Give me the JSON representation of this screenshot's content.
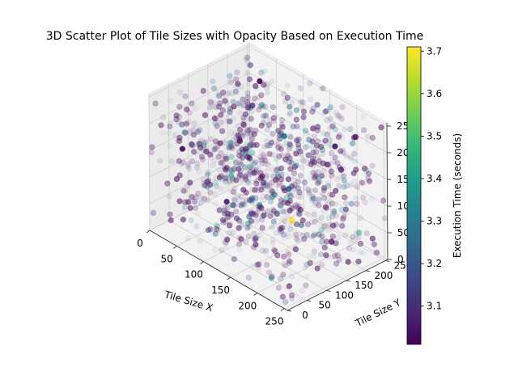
{
  "chart_data": {
    "type": "scatter",
    "projection": "3d",
    "title": "3D Scatter Plot of Tile Sizes with Opacity Based on Execution Time",
    "xlabel": "Tile Size X",
    "ylabel": "Tile Size Y",
    "zlabel": "",
    "xlim": [
      0,
      256
    ],
    "ylim": [
      0,
      256
    ],
    "zlim": [
      0,
      256
    ],
    "xticks": [
      0,
      50,
      100,
      150,
      200,
      250
    ],
    "yticks": [
      0,
      50,
      100,
      150,
      200,
      250
    ],
    "zticks": [
      0,
      50,
      100,
      150,
      200,
      250
    ],
    "grid": true,
    "colormap": "viridis",
    "colorbar": {
      "label": "Execution Time (seconds)",
      "min": 3.01,
      "max": 3.71,
      "ticks": [
        3.1,
        3.2,
        3.3,
        3.4,
        3.5,
        3.6,
        3.7
      ]
    },
    "colormap_stops": [
      "#440154",
      "#482878",
      "#3e4989",
      "#31688e",
      "#26828e",
      "#1f9e89",
      "#35b779",
      "#6ece58",
      "#b5de2b",
      "#fde725"
    ],
    "num_points": 1000,
    "highlighted_points": [
      {
        "x": 60,
        "y": 200,
        "z": 240,
        "t": 3.03
      },
      {
        "x": 40,
        "y": 30,
        "z": 165,
        "t": 3.05
      },
      {
        "x": 150,
        "y": 150,
        "z": 110,
        "t": 3.27
      },
      {
        "x": 170,
        "y": 130,
        "z": 70,
        "t": 3.71
      },
      {
        "x": 100,
        "y": 60,
        "z": 90,
        "t": 3.08
      },
      {
        "x": 200,
        "y": 200,
        "z": 200,
        "t": 3.06
      },
      {
        "x": 120,
        "y": 180,
        "z": 180,
        "t": 3.35
      }
    ],
    "cloud_seed": 42
  }
}
